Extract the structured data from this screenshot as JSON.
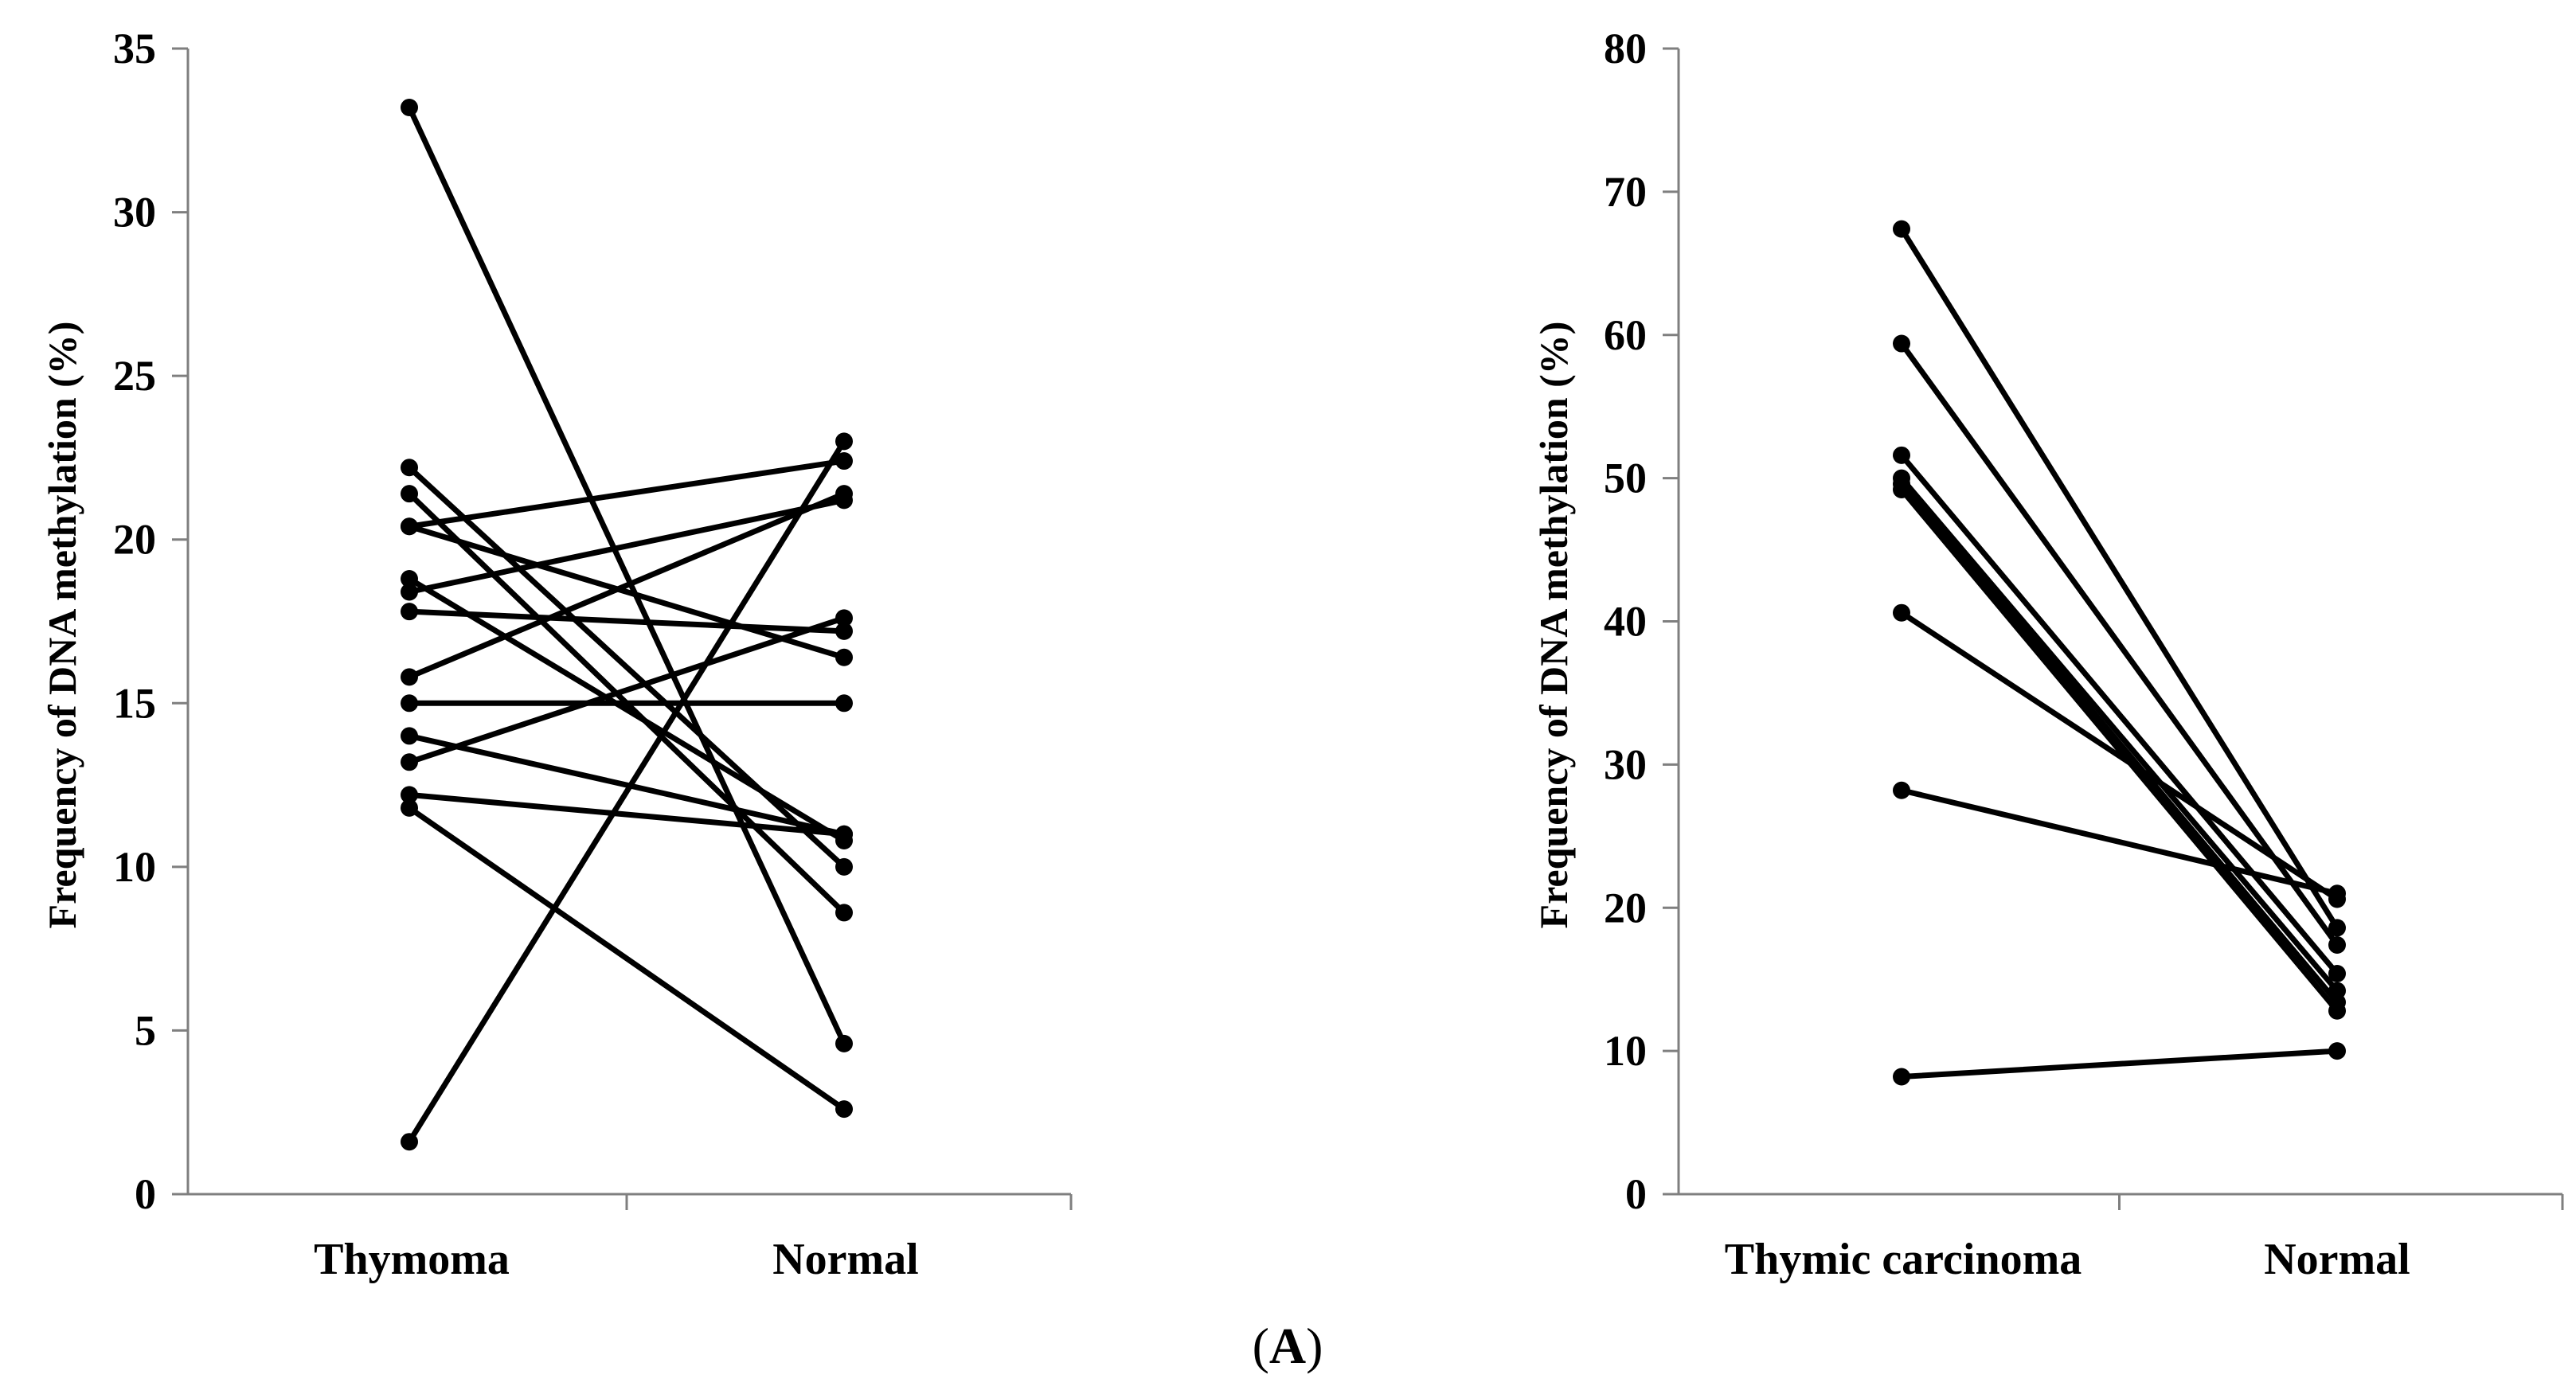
{
  "panel_label": {
    "open": "(",
    "letter": "A",
    "close": ")"
  },
  "chart_data": [
    {
      "type": "line",
      "subtype": "paired-points",
      "title": "",
      "xlabel": "",
      "ylabel": "Frequency of DNA methylation (%)",
      "categories": [
        "Thymoma",
        "Normal"
      ],
      "ylim": [
        0,
        35
      ],
      "yticks": [
        0,
        5,
        10,
        15,
        20,
        25,
        30,
        35
      ],
      "pairs": [
        [
          33.2,
          4.6
        ],
        [
          1.6,
          23.0
        ],
        [
          22.2,
          10.0
        ],
        [
          21.4,
          8.6
        ],
        [
          20.4,
          22.4
        ],
        [
          20.4,
          16.4
        ],
        [
          18.8,
          10.8
        ],
        [
          18.4,
          21.2
        ],
        [
          17.8,
          17.2
        ],
        [
          15.8,
          21.4
        ],
        [
          15.0,
          15.0
        ],
        [
          14.0,
          11.0
        ],
        [
          13.2,
          17.6
        ],
        [
          12.2,
          11.0
        ],
        [
          11.8,
          2.6
        ]
      ]
    },
    {
      "type": "line",
      "subtype": "paired-points",
      "title": "",
      "xlabel": "",
      "ylabel": "Frequency of DNA methylation (%)",
      "categories": [
        "Thymic carcinoma",
        "Normal"
      ],
      "ylim": [
        0,
        80
      ],
      "yticks": [
        0,
        10,
        20,
        30,
        40,
        50,
        60,
        70,
        80
      ],
      "pairs": [
        [
          67.4,
          18.6
        ],
        [
          59.4,
          17.4
        ],
        [
          51.6,
          15.4
        ],
        [
          50.0,
          14.2
        ],
        [
          49.6,
          13.4
        ],
        [
          49.2,
          12.8
        ],
        [
          40.6,
          20.6
        ],
        [
          28.2,
          21.0
        ],
        [
          8.2,
          10.0
        ]
      ]
    }
  ]
}
